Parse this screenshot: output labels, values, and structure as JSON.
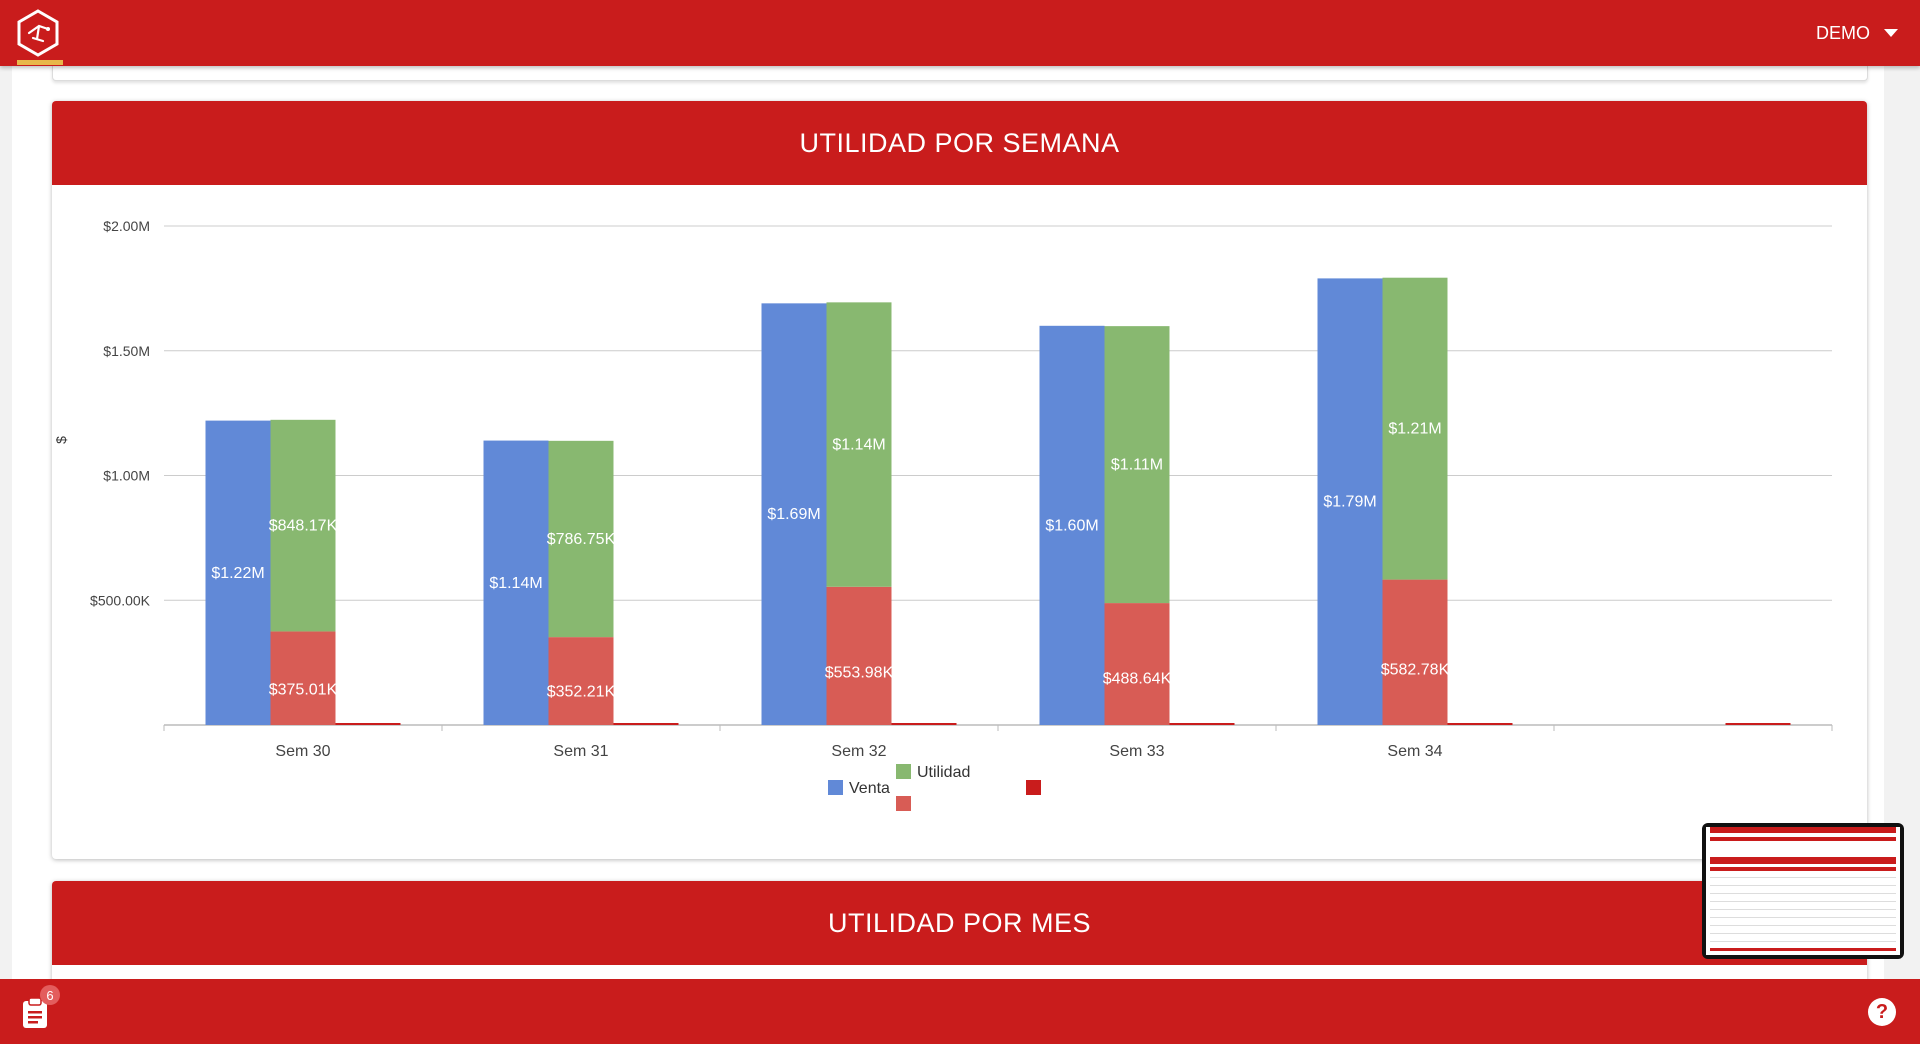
{
  "header": {
    "user": "DEMO"
  },
  "cards": {
    "weekly_title": "UTILIDAD POR SEMANA",
    "monthly_title": "UTILIDAD POR MES"
  },
  "footer": {
    "badge_count": "6",
    "help_label": "?"
  },
  "colors": {
    "brand": "#c91c1c",
    "venta": "#6189d7",
    "utilidad": "#88b870",
    "costo": "#d85c55",
    "descuento": "#c91c1c"
  },
  "chart_data": {
    "type": "bar",
    "title": "UTILIDAD POR SEMANA",
    "ylabel": "$",
    "ylim": [
      0,
      2000000
    ],
    "yticks": [
      {
        "value": 2000000,
        "label": "$2.00M"
      },
      {
        "value": 1500000,
        "label": "$1.50M"
      },
      {
        "value": 1000000,
        "label": "$1.00M"
      },
      {
        "value": 500000,
        "label": "$500.00K"
      },
      {
        "value": 0,
        "label": ""
      }
    ],
    "categories": [
      "Sem 30",
      "Sem 31",
      "Sem 32",
      "Sem 33",
      "Sem 34",
      ""
    ],
    "series": [
      {
        "name": "Venta",
        "color": "#6189d7",
        "stack": "a",
        "values": [
          1220000,
          1140000,
          1690000,
          1600000,
          1790000,
          0
        ],
        "labels": [
          "$1.22M",
          "$1.14M",
          "$1.69M",
          "$1.60M",
          "$1.79M",
          ""
        ]
      },
      {
        "name": "",
        "color": "#d85c55",
        "stack": "b",
        "values": [
          375010,
          352210,
          553980,
          488640,
          582780,
          0
        ],
        "labels": [
          "$375.01K",
          "$352.21K",
          "$553.98K",
          "$488.64K",
          "$582.78K",
          ""
        ]
      },
      {
        "name": "Utilidad",
        "color": "#88b870",
        "stack": "b",
        "values": [
          848170,
          786750,
          1140000,
          1110000,
          1210000,
          0
        ],
        "labels": [
          "$848.17K",
          "$786.75K",
          "$1.14M",
          "$1.11M",
          "$1.21M",
          ""
        ]
      },
      {
        "name": "",
        "color": "#c91c1c",
        "stack": "c",
        "values": [
          0,
          0,
          0,
          0,
          0,
          0
        ],
        "labels": [
          "",
          "",
          "",
          "",
          "",
          ""
        ]
      }
    ],
    "legend": "bottom",
    "grid": true
  }
}
